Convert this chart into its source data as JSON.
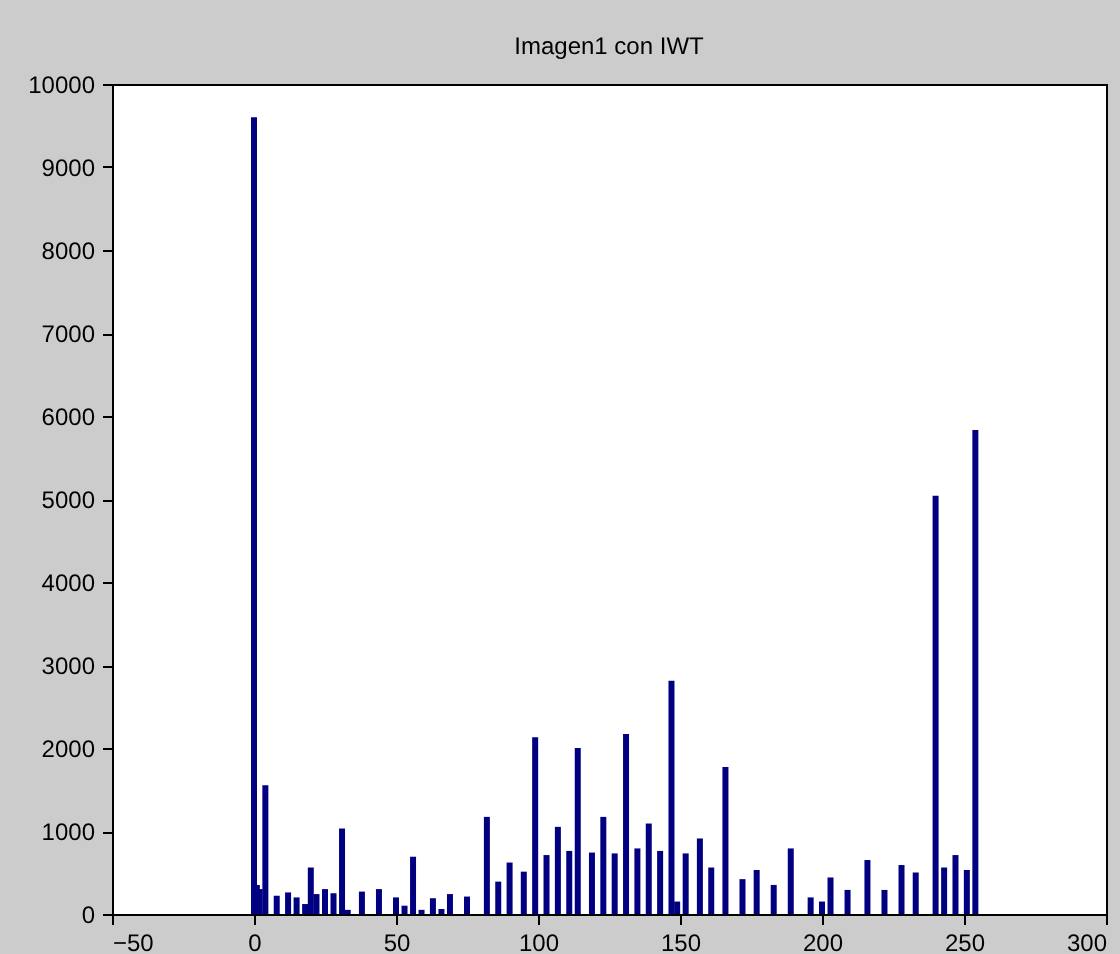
{
  "chart_data": {
    "type": "bar",
    "title": "Imagen1 con IWT",
    "x": [
      0,
      1,
      2,
      4,
      8,
      12,
      15,
      18,
      20,
      22,
      25,
      28,
      31,
      33,
      38,
      44,
      50,
      53,
      56,
      59,
      63,
      66,
      69,
      75,
      82,
      86,
      90,
      95,
      99,
      103,
      107,
      111,
      114,
      119,
      123,
      127,
      131,
      135,
      139,
      143,
      147,
      149,
      152,
      157,
      161,
      166,
      172,
      177,
      183,
      189,
      196,
      200,
      203,
      209,
      216,
      222,
      228,
      233,
      240,
      243,
      247,
      251,
      254
    ],
    "series": [
      {
        "color": "#000080",
        "values": [
          9600,
          350,
          300,
          1550,
          220,
          260,
          200,
          120,
          560,
          240,
          300,
          250,
          1030,
          50,
          270,
          300,
          200,
          100,
          690,
          50,
          190,
          60,
          240,
          210,
          1170,
          390,
          620,
          510,
          2130,
          710,
          1050,
          760,
          2000,
          740,
          1170,
          730,
          2170,
          790,
          1090,
          760,
          2810,
          150,
          730,
          910,
          560,
          1770,
          420,
          530,
          350,
          790,
          200,
          150,
          440,
          290,
          650,
          290,
          590,
          500,
          5040,
          560,
          710,
          530,
          5830
        ]
      }
    ],
    "xlim": [
      -50,
      300
    ],
    "xticks": [
      -50,
      0,
      50,
      100,
      150,
      200,
      250,
      300
    ],
    "ylim": [
      0,
      10000
    ],
    "yticks": [
      0,
      1000,
      2000,
      3000,
      4000,
      5000,
      6000,
      7000,
      8000,
      9000,
      10000
    ],
    "grid": false
  }
}
